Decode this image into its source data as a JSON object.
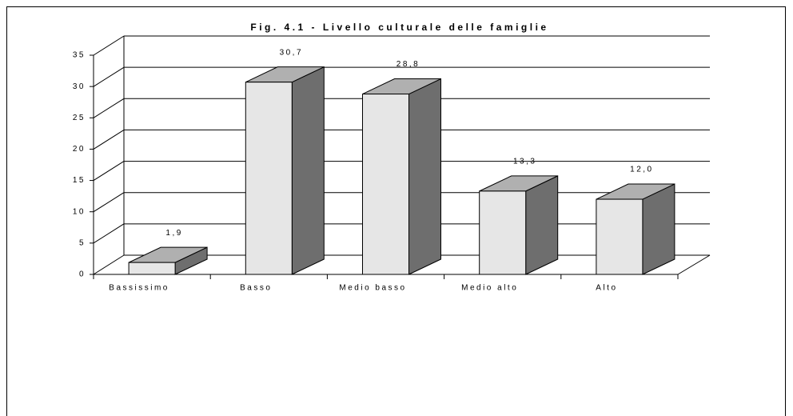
{
  "chart_data": {
    "type": "bar3d",
    "title": "Fig. 4.1 - Livello culturale delle famiglie",
    "categories": [
      "Bassissimo",
      "Basso",
      "Medio basso",
      "Medio alto",
      "Alto"
    ],
    "values": [
      1.9,
      30.7,
      28.8,
      13.3,
      12.0
    ],
    "value_labels": [
      "1,9",
      "30,7",
      "28,8",
      "13,3",
      "12,0"
    ],
    "color": "#e6e6e6",
    "ylim": [
      0,
      35
    ],
    "yticks": [
      0,
      5,
      10,
      15,
      20,
      25,
      30,
      35
    ],
    "grid": true
  }
}
